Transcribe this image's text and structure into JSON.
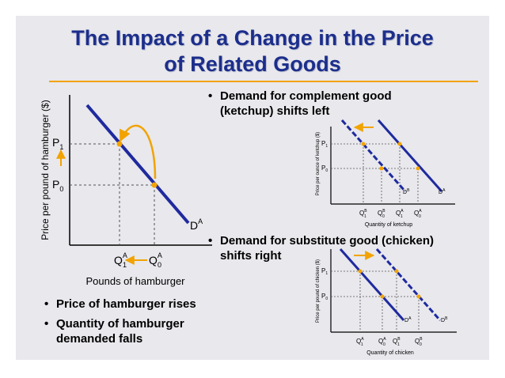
{
  "title": {
    "line1": "The Impact of a Change in the Price",
    "line2": "of Related Goods"
  },
  "bullets": {
    "complement": {
      "line1": "Demand for complement good",
      "line2": "(ketchup) shifts left"
    },
    "substitute": {
      "line1": "Demand for substitute good (chicken)",
      "line2": "shifts right"
    },
    "price_rises": "Price of hamburger rises",
    "quantity_falls": {
      "line1": "Quantity of hamburger",
      "line2": "demanded falls"
    }
  },
  "main_chart": {
    "y_axis_label": "Price per pound of hamburger ($)",
    "x_axis_label": "Pounds of hamburger",
    "p1": "P",
    "p1_sub": "1",
    "p0": "P",
    "p0_sub": "0",
    "q1": "Q",
    "q1_sup": "A",
    "q1_sub": "1",
    "q0": "Q",
    "q0_sup": "A",
    "q0_sub": "0",
    "demand_label": "D",
    "demand_sup": "A"
  },
  "ketchup_chart": {
    "y_axis_label": "Price per ounce of ketchup ($)",
    "x_axis_label": "Quantity of ketchup",
    "p1": "P",
    "p1_sub": "1",
    "p0": "P",
    "p0_sub": "0",
    "ticks": [
      {
        "q": "Q",
        "sup": "B",
        "sub": "1"
      },
      {
        "q": "Q",
        "sup": "B",
        "sub": "0"
      },
      {
        "q": "Q",
        "sup": "A",
        "sub": "1"
      },
      {
        "q": "Q",
        "sup": "A",
        "sub": "0"
      }
    ],
    "demand_new": "D",
    "demand_new_sup": "B",
    "demand_old": "D",
    "demand_old_sup": "A"
  },
  "chicken_chart": {
    "y_axis_label": "Price per pound of chicken ($)",
    "x_axis_label": "Quantity of chicken",
    "p1": "P",
    "p1_sub": "1",
    "p0": "P",
    "p0_sub": "0",
    "ticks": [
      {
        "q": "Q",
        "sup": "A",
        "sub": "1"
      },
      {
        "q": "Q",
        "sup": "A",
        "sub": "0"
      },
      {
        "q": "Q",
        "sup": "B",
        "sub": "1"
      },
      {
        "q": "Q",
        "sup": "B",
        "sub": "0"
      }
    ],
    "demand_old": "D",
    "demand_old_sup": "A",
    "demand_new": "D",
    "demand_new_sup": "B"
  },
  "colors": {
    "title": "#1c2e8c",
    "curve": "#1f2a9e",
    "accent": "#f2a300",
    "slide_bg": "#e8e8ed"
  }
}
